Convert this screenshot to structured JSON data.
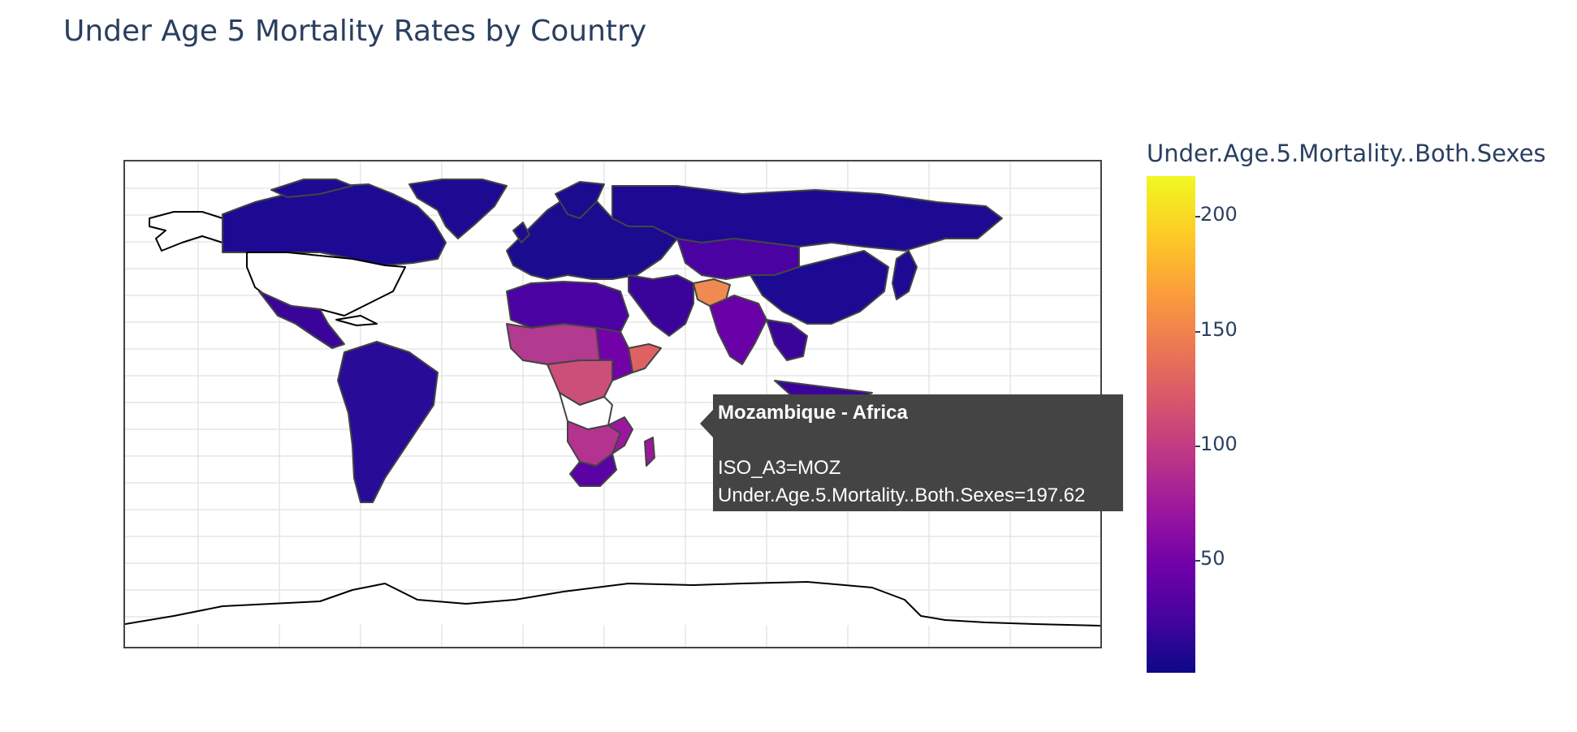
{
  "title": "Under Age 5 Mortality Rates by Country",
  "colorbar": {
    "title": "Under.Age.5.Mortality..Both.Sexes",
    "range": [
      1.8,
      218
    ],
    "ticks": [
      "200",
      "150",
      "100",
      "50"
    ],
    "tick_values": [
      200,
      150,
      100,
      50
    ],
    "colorscale": "Plasma"
  },
  "tooltip": {
    "title": "Mozambique - Africa",
    "line1": "ISO_A3=MOZ",
    "line2": "Under.Age.5.Mortality..Both.Sexes=197.62"
  },
  "map": {
    "projection": "equirectangular",
    "regions": [
      {
        "name": "Canada",
        "color": "#1c0a93",
        "value": 5
      },
      {
        "name": "Greenland",
        "color": "#1c0a93",
        "value": 5
      },
      {
        "name": "Alaska",
        "color": "#ffffff",
        "value": null
      },
      {
        "name": "Mexico",
        "color": "#3a049a",
        "value": 15
      },
      {
        "name": "South America",
        "color": "#280b96",
        "value": 15
      },
      {
        "name": "Europe",
        "color": "#1b0b8f",
        "value": 5
      },
      {
        "name": "Russia",
        "color": "#1c0a93",
        "value": 8
      },
      {
        "name": "China",
        "color": "#1c0a93",
        "value": 10
      },
      {
        "name": "Central Asia",
        "color": "#4a03a2",
        "value": 35
      },
      {
        "name": "Afghanistan",
        "color": "#ef8b51",
        "value": 150
      },
      {
        "name": "India",
        "color": "#6a00a8",
        "value": 55
      },
      {
        "name": "North Africa",
        "color": "#4a03a2",
        "value": 30
      },
      {
        "name": "Sahel",
        "color": "#b23a8f",
        "value": 100
      },
      {
        "name": "Central Africa",
        "color": "#cc4f7a",
        "value": 115
      },
      {
        "name": "Somalia",
        "color": "#df6263",
        "value": 130
      },
      {
        "name": "Southern Africa",
        "color": "#b4338f",
        "value": 90
      },
      {
        "name": "South Africa",
        "color": "#5a02a4",
        "value": 45
      },
      {
        "name": "Southeast Asia",
        "color": "#3a049a",
        "value": 25
      },
      {
        "name": "Japan",
        "color": "#1c0a93",
        "value": 3
      },
      {
        "name": "Australia",
        "color": "#1c0a93",
        "value": 4
      }
    ]
  }
}
